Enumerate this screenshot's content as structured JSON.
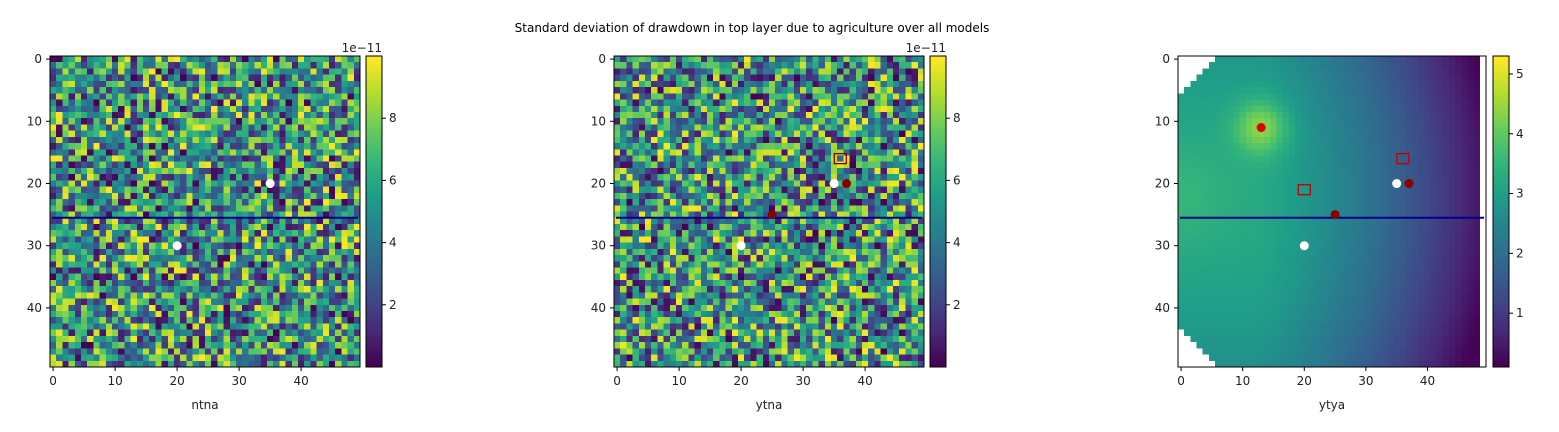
{
  "figure": {
    "title": "Standard deviation of drawdown in top layer due to agriculture over all models"
  },
  "chart_data": [
    {
      "type": "heatmap",
      "xlabel": "ntna",
      "grid_size": [
        50,
        50
      ],
      "xlim": [
        0,
        49
      ],
      "ylim": [
        49,
        0
      ],
      "xticks": [
        "0",
        "10",
        "20",
        "30",
        "40"
      ],
      "yticks": [
        "0",
        "10",
        "20",
        "30",
        "40"
      ],
      "colorbar": {
        "min": 0,
        "max": 10,
        "ticks": [
          "2",
          "4",
          "6",
          "8"
        ],
        "offset_label": "1e−11",
        "colormap": "viridis"
      },
      "field": "random",
      "hline_row": 25.5,
      "markers": [
        {
          "x": 35,
          "y": 20,
          "kind": "dot",
          "color": "#ffffff"
        },
        {
          "x": 20,
          "y": 30,
          "kind": "dot",
          "color": "#ffffff"
        }
      ]
    },
    {
      "type": "heatmap",
      "xlabel": "ytna",
      "grid_size": [
        50,
        50
      ],
      "xlim": [
        0,
        49
      ],
      "ylim": [
        49,
        0
      ],
      "xticks": [
        "0",
        "10",
        "20",
        "30",
        "40"
      ],
      "yticks": [
        "0",
        "10",
        "20",
        "30",
        "40"
      ],
      "colorbar": {
        "min": 0,
        "max": 10,
        "ticks": [
          "2",
          "4",
          "6",
          "8"
        ],
        "offset_label": "1e−11",
        "colormap": "viridis"
      },
      "field": "random",
      "hline_row": 25.5,
      "markers": [
        {
          "x": 36,
          "y": 16,
          "kind": "square",
          "color": "#8b0000"
        },
        {
          "x": 35,
          "y": 20,
          "kind": "dot",
          "color": "#ffffff"
        },
        {
          "x": 37,
          "y": 20,
          "kind": "dot",
          "color": "#8b0000"
        },
        {
          "x": 25,
          "y": 25,
          "kind": "dot",
          "color": "#8b0000"
        },
        {
          "x": 20,
          "y": 30,
          "kind": "dot",
          "color": "#ffffff"
        }
      ]
    },
    {
      "type": "heatmap",
      "xlabel": "ytya",
      "grid_size": [
        50,
        50
      ],
      "xlim": [
        0,
        49
      ],
      "ylim": [
        49,
        0
      ],
      "xticks": [
        "0",
        "10",
        "20",
        "30",
        "40"
      ],
      "yticks": [
        "0",
        "10",
        "20",
        "30",
        "40"
      ],
      "colorbar": {
        "min": 0.1,
        "max": 5.3,
        "ticks": [
          "1",
          "2",
          "3",
          "4",
          "5"
        ],
        "offset_label": "",
        "colormap": "viridis"
      },
      "field": "smooth",
      "hline_row": 25.5,
      "markers": [
        {
          "x": 13,
          "y": 11,
          "kind": "dot",
          "color": "#e00000"
        },
        {
          "x": 36,
          "y": 16,
          "kind": "square",
          "color": "#c00000"
        },
        {
          "x": 20,
          "y": 21,
          "kind": "square",
          "color": "#c00000"
        },
        {
          "x": 35,
          "y": 20,
          "kind": "dot",
          "color": "#ffffff"
        },
        {
          "x": 37,
          "y": 20,
          "kind": "dot",
          "color": "#8b0000"
        },
        {
          "x": 25,
          "y": 25,
          "kind": "dot",
          "color": "#8b0000"
        },
        {
          "x": 20,
          "y": 30,
          "kind": "dot",
          "color": "#ffffff"
        }
      ]
    }
  ],
  "colors": {
    "hline": "#00008b"
  }
}
